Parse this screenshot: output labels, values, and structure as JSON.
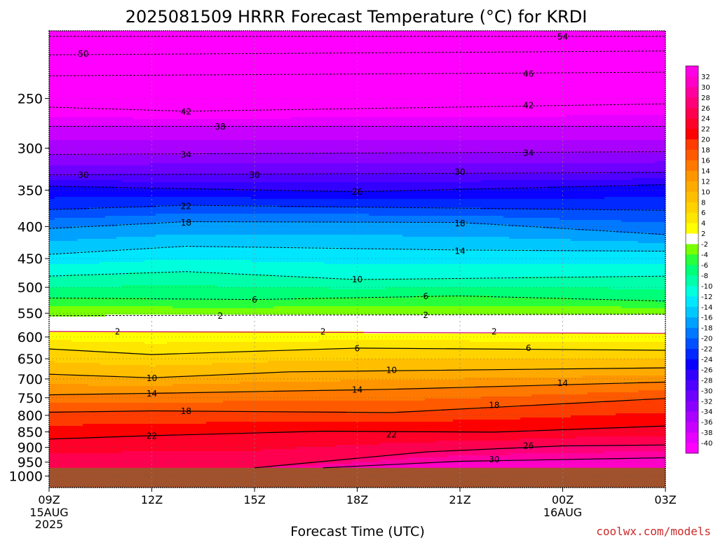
{
  "chart_data": {
    "type": "heatmap",
    "title": "2025081509 HRRR Forecast Temperature (°C) for KRDI",
    "xlabel": "Forecast Time (UTC)",
    "ylabel": "",
    "y_axis": {
      "scale": "log",
      "range": [
        1043,
        195
      ],
      "unit": "hPa",
      "ticks": [
        250,
        300,
        350,
        400,
        450,
        500,
        550,
        600,
        650,
        700,
        750,
        800,
        850,
        900,
        950,
        1000
      ]
    },
    "x_axis": {
      "range_hours": [
        0,
        18
      ],
      "ticks": [
        {
          "hour": 0,
          "label": "09Z",
          "sub1": "15AUG",
          "sub2": "2025"
        },
        {
          "hour": 3,
          "label": "12Z",
          "sub1": "",
          "sub2": ""
        },
        {
          "hour": 6,
          "label": "15Z",
          "sub1": "",
          "sub2": ""
        },
        {
          "hour": 9,
          "label": "18Z",
          "sub1": "",
          "sub2": ""
        },
        {
          "hour": 12,
          "label": "21Z",
          "sub1": "",
          "sub2": ""
        },
        {
          "hour": 15,
          "label": "00Z",
          "sub1": "16AUG",
          "sub2": ""
        },
        {
          "hour": 18,
          "label": "03Z",
          "sub1": "",
          "sub2": ""
        }
      ]
    },
    "colorbar": {
      "levels": [
        -40,
        -38,
        -36,
        -34,
        -32,
        -30,
        -28,
        -26,
        -24,
        -22,
        -20,
        -18,
        -16,
        -14,
        -12,
        -10,
        -8,
        -6,
        -4,
        -2,
        2,
        4,
        6,
        8,
        10,
        12,
        14,
        16,
        18,
        20,
        22,
        24,
        26,
        28,
        30,
        32
      ],
      "colors": [
        "#ff00ff",
        "#e600ff",
        "#c800ff",
        "#aa00ff",
        "#8c00ff",
        "#6e00ff",
        "#5000ff",
        "#3200ff",
        "#0a00ff",
        "#0028ff",
        "#0050ff",
        "#0078ff",
        "#00a0ff",
        "#00c8ff",
        "#00e6ff",
        "#00ffdc",
        "#00ffaa",
        "#00ff78",
        "#28ff3c",
        "#78ff00",
        "#ffffff",
        "#ffff00",
        "#ffe600",
        "#ffd200",
        "#ffbe00",
        "#ffaa00",
        "#ff9600",
        "#ff7800",
        "#ff5a00",
        "#ff3c00",
        "#ff0000",
        "#ff0028",
        "#ff0050",
        "#ff0078",
        "#ff00a0",
        "#ff00c8",
        "#ff00e6"
      ]
    },
    "surface_color": "#a0522d",
    "surface_pressure_hPa": 970,
    "isotherms": [
      {
        "value": -54,
        "label": "54",
        "levels": [
          [
            0,
            199
          ],
          [
            18,
            199
          ]
        ],
        "label_at": [
          [
            15,
            199
          ]
        ]
      },
      {
        "value": -50,
        "label": "50",
        "levels": [
          [
            0,
            213
          ],
          [
            18,
            210
          ]
        ],
        "label_at": [
          [
            1,
            212
          ]
        ]
      },
      {
        "value": -46,
        "label": "46",
        "levels": [
          [
            0,
            230
          ],
          [
            18,
            227
          ]
        ],
        "label_at": [
          [
            14,
            228
          ]
        ]
      },
      {
        "value": -42,
        "label": "42",
        "levels": [
          [
            0,
            258
          ],
          [
            4,
            262
          ],
          [
            18,
            255
          ]
        ],
        "label_at": [
          [
            4,
            262
          ],
          [
            14,
            256
          ]
        ]
      },
      {
        "value": -38,
        "label": "38",
        "levels": [
          [
            0,
            277
          ],
          [
            18,
            277
          ]
        ],
        "label_at": [
          [
            5,
            277
          ]
        ]
      },
      {
        "value": -34,
        "label": "34",
        "levels": [
          [
            0,
            307
          ],
          [
            18,
            304
          ]
        ],
        "label_at": [
          [
            4,
            307
          ],
          [
            14,
            305
          ]
        ]
      },
      {
        "value": -30,
        "label": "30",
        "levels": [
          [
            0,
            331
          ],
          [
            18,
            328
          ]
        ],
        "label_at": [
          [
            1,
            331
          ],
          [
            6,
            331
          ],
          [
            12,
            327
          ]
        ]
      },
      {
        "value": -26,
        "label": "26",
        "levels": [
          [
            0,
            345
          ],
          [
            9,
            352
          ],
          [
            18,
            343
          ]
        ],
        "label_at": [
          [
            9,
            352
          ]
        ]
      },
      {
        "value": -22,
        "label": "22",
        "levels": [
          [
            0,
            376
          ],
          [
            4,
            370
          ],
          [
            18,
            377
          ]
        ],
        "label_at": [
          [
            4,
            371
          ]
        ]
      },
      {
        "value": -18,
        "label": "18",
        "levels": [
          [
            0,
            403
          ],
          [
            4,
            393
          ],
          [
            12,
            394
          ],
          [
            18,
            412
          ]
        ],
        "label_at": [
          [
            4,
            394
          ],
          [
            12,
            395
          ]
        ]
      },
      {
        "value": -14,
        "label": "14",
        "levels": [
          [
            0,
            443
          ],
          [
            4,
            430
          ],
          [
            12,
            436
          ],
          [
            18,
            438
          ]
        ],
        "label_at": [
          [
            12,
            437
          ]
        ]
      },
      {
        "value": -10,
        "label": "10",
        "levels": [
          [
            0,
            480
          ],
          [
            4,
            472
          ],
          [
            9,
            486
          ],
          [
            18,
            480
          ]
        ],
        "label_at": [
          [
            9,
            485
          ]
        ]
      },
      {
        "value": -6,
        "label": "6",
        "levels": [
          [
            0,
            520
          ],
          [
            6,
            523
          ],
          [
            12,
            516
          ],
          [
            18,
            526
          ]
        ],
        "label_at": [
          [
            6,
            523
          ],
          [
            11,
            516
          ]
        ]
      },
      {
        "value": -2,
        "label": "2",
        "levels": [
          [
            0,
            555
          ],
          [
            18,
            552
          ]
        ],
        "label_at": [
          [
            5,
            555
          ],
          [
            11,
            553
          ]
        ]
      },
      {
        "value": 2,
        "label": "2",
        "levels": [
          [
            0,
            588
          ],
          [
            18,
            592
          ]
        ],
        "label_at": [
          [
            2,
            588
          ],
          [
            8,
            588
          ],
          [
            13,
            588
          ]
        ]
      },
      {
        "value": 6,
        "label": "6",
        "levels": [
          [
            0,
            627
          ],
          [
            3,
            640
          ],
          [
            9,
            625
          ],
          [
            18,
            630
          ]
        ],
        "label_at": [
          [
            9,
            625
          ],
          [
            14,
            624
          ]
        ]
      },
      {
        "value": 10,
        "label": "10",
        "levels": [
          [
            0,
            688
          ],
          [
            3,
            697
          ],
          [
            7,
            682
          ],
          [
            18,
            672
          ]
        ],
        "label_at": [
          [
            3,
            697
          ],
          [
            10,
            677
          ]
        ]
      },
      {
        "value": 14,
        "label": "14",
        "levels": [
          [
            0,
            742
          ],
          [
            3,
            738
          ],
          [
            10,
            727
          ],
          [
            18,
            708
          ]
        ],
        "label_at": [
          [
            3,
            738
          ],
          [
            9,
            728
          ],
          [
            15,
            710
          ]
        ]
      },
      {
        "value": 18,
        "label": "18",
        "levels": [
          [
            0,
            791
          ],
          [
            3,
            787
          ],
          [
            10,
            792
          ],
          [
            18,
            752
          ]
        ],
        "label_at": [
          [
            4,
            787
          ],
          [
            13,
            770
          ]
        ]
      },
      {
        "value": 22,
        "label": "22",
        "levels": [
          [
            0,
            873
          ],
          [
            3,
            862
          ],
          [
            8,
            848
          ],
          [
            13,
            851
          ],
          [
            18,
            832
          ]
        ],
        "label_at": [
          [
            3,
            862
          ],
          [
            10,
            858
          ]
        ]
      },
      {
        "value": 26,
        "label": "26",
        "levels": [
          [
            6,
            970
          ],
          [
            11,
            915
          ],
          [
            15,
            895
          ],
          [
            18,
            892
          ]
        ],
        "label_at": [
          [
            14,
            894
          ]
        ]
      },
      {
        "value": 30,
        "label": "30",
        "levels": [
          [
            8,
            970
          ],
          [
            12,
            947
          ],
          [
            18,
            935
          ]
        ],
        "label_at": [
          [
            13,
            940
          ]
        ]
      }
    ]
  },
  "branding": {
    "credit": "coolwx.com/models"
  }
}
